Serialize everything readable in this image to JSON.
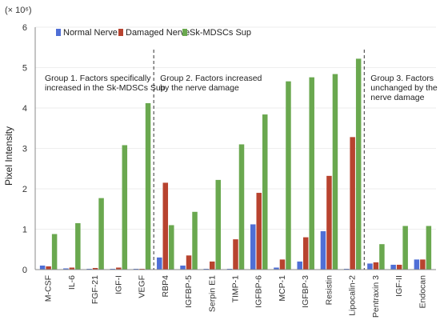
{
  "chart_data": {
    "type": "bar",
    "ylabel": "Pixel Intensity",
    "scale_note": "(× 10⁶)",
    "ylim": [
      0,
      6
    ],
    "yticks": [
      "0",
      "1",
      "2",
      "3",
      "4",
      "5",
      "6"
    ],
    "legend_placement": "top-left",
    "categories": [
      "M-CSF",
      "IL-6",
      "FGF-21",
      "IGF-I",
      "VEGF",
      "RBP4",
      "IGFBP-5",
      "Serpin E1",
      "TIMP-1",
      "IGFBP-6",
      "MCP-1",
      "IGFBP-3",
      "Resistin",
      "Lipocalin-2",
      "Pentraxin 3",
      "IGF-II",
      "Endocan"
    ],
    "series": [
      {
        "name": "Normal  Nerve",
        "color": "#4f6fd6",
        "values": [
          0.1,
          0.03,
          0.02,
          0.02,
          0.02,
          0.3,
          0.1,
          0.02,
          0.02,
          1.12,
          0.05,
          0.2,
          0.95,
          0.02,
          0.15,
          0.12,
          0.25
        ]
      },
      {
        "name": "Damaged Nerve",
        "color": "#b8432f",
        "values": [
          0.08,
          0.05,
          0.04,
          0.05,
          0.02,
          2.15,
          0.35,
          0.2,
          0.75,
          1.9,
          0.25,
          0.8,
          2.32,
          3.28,
          0.18,
          0.12,
          0.25
        ]
      },
      {
        "name": "Sk-MDSCs Sup",
        "color": "#6aa84f",
        "values": [
          0.88,
          1.15,
          1.77,
          3.08,
          4.12,
          1.1,
          1.43,
          2.22,
          3.1,
          3.84,
          4.66,
          4.76,
          4.84,
          5.22,
          0.63,
          1.08,
          1.08
        ]
      }
    ],
    "groups": [
      {
        "lines": [
          "Group 1. Factors specifically",
          "increased in the Sk-MDSCs Sup"
        ],
        "start": 0,
        "end": 4
      },
      {
        "lines": [
          "Group 2.  Factors increased",
          "by the nerve damage"
        ],
        "start": 5,
        "end": 13
      },
      {
        "lines": [
          "Group 3.  Factors",
          "unchanged by the",
          "nerve damage"
        ],
        "start": 14,
        "end": 16
      }
    ]
  }
}
